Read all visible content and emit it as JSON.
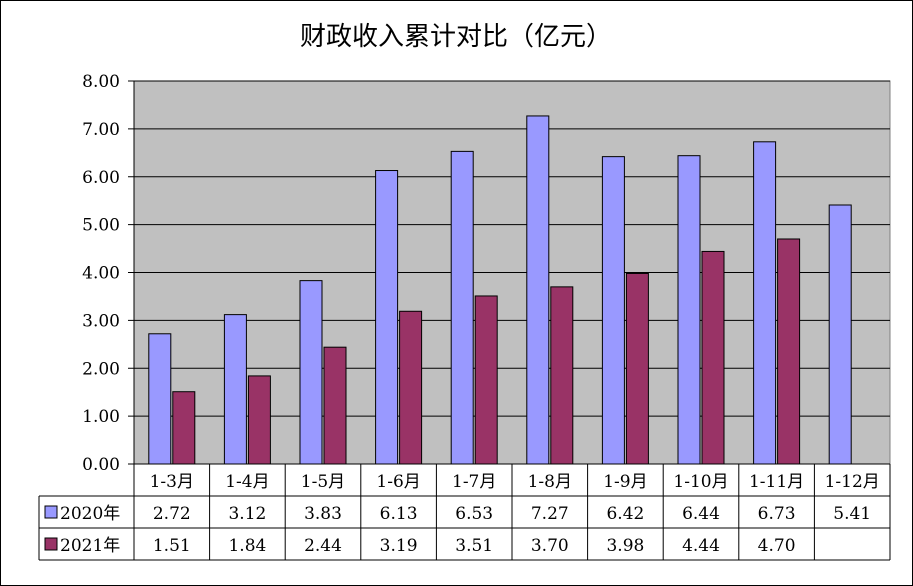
{
  "chart_data": {
    "type": "bar",
    "title": "财政收入累计对比（亿元）",
    "categories": [
      "1-3月",
      "1-4月",
      "1-5月",
      "1-6月",
      "1-7月",
      "1-8月",
      "1-9月",
      "1-10月",
      "1-11月",
      "1-12月"
    ],
    "series": [
      {
        "name": "2020年",
        "color": "#9999ff",
        "values": [
          2.72,
          3.12,
          3.83,
          6.13,
          6.53,
          7.27,
          6.42,
          6.44,
          6.73,
          5.41
        ],
        "labels": [
          "2.72",
          "3.12",
          "3.83",
          "6.13",
          "6.53",
          "7.27",
          "6.42",
          "6.44",
          "6.73",
          "5.41"
        ]
      },
      {
        "name": "2021年",
        "color": "#993366",
        "values": [
          1.51,
          1.84,
          2.44,
          3.19,
          3.51,
          3.7,
          3.98,
          4.44,
          4.7,
          null
        ],
        "labels": [
          "1.51",
          "1.84",
          "2.44",
          "3.19",
          "3.51",
          "3.70",
          "3.98",
          "4.44",
          "4.70",
          ""
        ]
      }
    ],
    "ylim": [
      0,
      8
    ],
    "yticks": [
      "0.00",
      "1.00",
      "2.00",
      "3.00",
      "4.00",
      "5.00",
      "6.00",
      "7.00",
      "8.00"
    ],
    "ytick_values": [
      0,
      1,
      2,
      3,
      4,
      5,
      6,
      7,
      8
    ],
    "plot_background": "#c0c0c0",
    "grid": true,
    "legend": "data-table"
  }
}
